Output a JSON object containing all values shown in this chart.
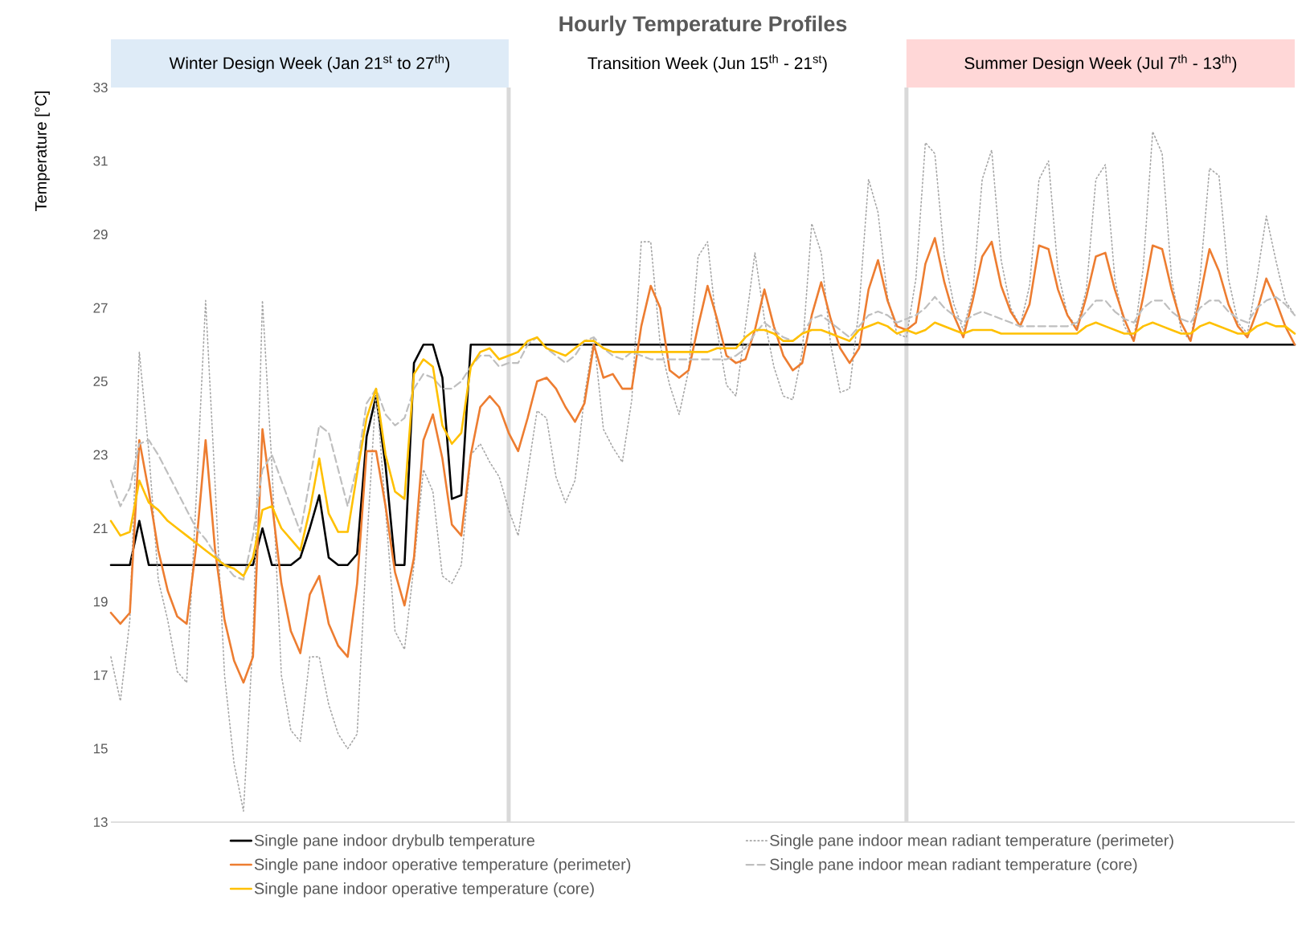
{
  "chart_data": {
    "type": "line",
    "title": "Hourly Temperature Profiles",
    "ylabel": "Temperature [°C]",
    "categories": [
      null,
      null,
      null,
      null,
      null,
      null,
      null,
      null,
      null,
      null,
      null,
      null,
      null,
      null,
      null,
      null,
      null,
      null,
      null,
      null,
      null,
      null,
      null,
      null,
      null,
      null,
      null,
      null,
      null,
      null,
      null,
      null,
      null,
      null,
      null,
      null,
      null,
      null,
      null,
      null,
      null,
      null,
      null,
      null,
      null,
      null,
      null,
      null,
      null,
      null,
      null,
      null,
      null,
      null,
      null,
      null,
      null,
      null,
      null,
      null,
      null,
      null,
      null,
      null,
      null,
      null,
      null,
      null,
      null,
      null,
      null,
      null,
      null,
      null,
      null,
      null,
      null,
      null,
      null,
      null,
      null,
      null,
      null,
      null,
      null,
      null,
      null,
      null,
      null,
      null,
      null,
      null,
      null,
      null,
      null,
      null,
      null,
      null,
      null,
      null,
      null,
      null,
      null,
      null,
      null,
      null,
      null,
      null,
      null,
      null,
      null,
      null,
      null,
      null,
      null,
      null,
      null,
      null,
      null,
      null,
      null,
      null,
      null,
      null,
      null,
      null
    ],
    "ylim": [
      13,
      33
    ],
    "yticks": [
      13,
      15,
      17,
      19,
      21,
      23,
      25,
      27,
      29,
      31,
      33
    ],
    "tick_labels": "y",
    "legend": "bottom",
    "marker": "none",
    "annotations": [
      "Winter Design Week (Jan 21$^{st}$ to 27$^{th}$)",
      "Transition Week (Jun 15$^{th}$ - 21$^{st}$)",
      "Summer Design Week (Jul 7$^{th}$ - 13$^{th}$)"
    ],
    "series": [
      {
        "name": "Single pane indoor drybulb temperature",
        "color": "#000000",
        "line_style": "solid",
        "values": [
          20,
          20,
          20,
          21.2,
          20,
          20,
          20,
          20,
          20,
          20,
          20,
          20,
          20,
          20,
          20,
          20,
          21,
          20,
          20,
          20,
          20.2,
          21.0,
          21.9,
          20.2,
          20,
          20,
          20.3,
          23.5,
          24.6,
          22.7,
          20,
          20,
          25.5,
          26,
          26,
          25.1,
          21.8,
          21.9,
          26,
          26,
          26,
          26,
          26,
          26,
          26,
          26,
          26,
          26,
          26,
          26,
          26,
          26,
          26,
          26,
          26,
          26,
          26,
          26,
          26,
          26,
          26,
          26,
          26,
          26,
          26,
          26,
          26,
          26,
          26,
          26,
          26,
          26,
          26,
          26,
          26,
          26,
          26,
          26,
          26,
          26,
          26,
          26,
          26,
          26,
          26,
          26,
          26,
          26,
          26,
          26,
          26,
          26,
          26,
          26,
          26,
          26,
          26,
          26,
          26,
          26,
          26,
          26,
          26,
          26,
          26,
          26,
          26,
          26,
          26,
          26,
          26,
          26,
          26,
          26,
          26,
          26,
          26,
          26,
          26,
          26,
          26,
          26,
          26,
          26,
          26,
          26
        ]
      },
      {
        "name": "Single pane indoor mean radiant temperature (perimeter)",
        "color": "#a6a6a6",
        "line_style": "dotted",
        "values": [
          17.5,
          16.3,
          18.5,
          25.8,
          23.1,
          19.6,
          18.5,
          17.1,
          16.8,
          21.8,
          27.2,
          22.2,
          17.0,
          14.6,
          13.3,
          18.0,
          27.2,
          22.7,
          17.0,
          15.5,
          15.2,
          17.5,
          17.5,
          16.2,
          15.4,
          15.0,
          15.4,
          20.5,
          24.8,
          21.5,
          18.2,
          17.7,
          20.0,
          22.6,
          22.0,
          19.7,
          19.5,
          20.0,
          23.0,
          23.3,
          22.8,
          22.4,
          21.5,
          20.8,
          22.5,
          24.2,
          24.0,
          22.4,
          21.7,
          22.3,
          24.6,
          26.2,
          23.7,
          23.2,
          22.8,
          24.5,
          28.8,
          28.8,
          26.0,
          24.9,
          24.1,
          25.3,
          28.4,
          28.8,
          26.4,
          24.9,
          24.6,
          26.5,
          28.5,
          26.7,
          25.4,
          24.6,
          24.5,
          25.8,
          29.3,
          28.5,
          26.0,
          24.7,
          24.8,
          27.0,
          30.5,
          29.6,
          27.3,
          26.3,
          26.2,
          27.8,
          31.5,
          31.2,
          28.4,
          27.1,
          26.4,
          27.4,
          30.5,
          31.3,
          28.3,
          27.0,
          26.5,
          27.6,
          30.5,
          31.0,
          28.0,
          26.8,
          26.5,
          27.5,
          30.5,
          30.9,
          27.8,
          26.5,
          26.1,
          28.1,
          31.8,
          31.2,
          27.8,
          26.4,
          26.1,
          27.8,
          30.8,
          30.6,
          27.8,
          26.6,
          26.3,
          27.8,
          29.5,
          28.3,
          27.2,
          26.8
        ]
      },
      {
        "name": "Single pane indoor operative temperature (perimeter)",
        "color": "#ed7d31",
        "line_style": "solid",
        "values": [
          18.7,
          18.4,
          18.7,
          23.4,
          22.0,
          20.4,
          19.3,
          18.6,
          18.4,
          20.5,
          23.4,
          20.4,
          18.5,
          17.4,
          16.8,
          17.5,
          23.7,
          21.7,
          19.5,
          18.2,
          17.6,
          19.2,
          19.7,
          18.4,
          17.8,
          17.5,
          19.5,
          23.1,
          23.1,
          21.6,
          19.8,
          18.9,
          20.2,
          23.4,
          24.1,
          22.9,
          21.1,
          20.8,
          23.0,
          24.3,
          24.6,
          24.3,
          23.6,
          23.1,
          24.0,
          25.0,
          25.1,
          24.8,
          24.3,
          23.9,
          24.4,
          26.0,
          25.1,
          25.2,
          24.8,
          24.8,
          26.5,
          27.6,
          27.0,
          25.3,
          25.1,
          25.3,
          26.5,
          27.6,
          26.7,
          25.7,
          25.5,
          25.6,
          26.4,
          27.5,
          26.5,
          25.7,
          25.3,
          25.5,
          26.8,
          27.7,
          26.7,
          25.9,
          25.5,
          25.9,
          27.5,
          28.3,
          27.2,
          26.5,
          26.4,
          26.6,
          28.2,
          28.9,
          27.7,
          26.8,
          26.2,
          27.2,
          28.4,
          28.8,
          27.6,
          26.9,
          26.5,
          27.1,
          28.7,
          28.6,
          27.5,
          26.8,
          26.4,
          27.3,
          28.4,
          28.5,
          27.5,
          26.7,
          26.1,
          27.3,
          28.7,
          28.6,
          27.5,
          26.6,
          26.1,
          27.3,
          28.6,
          28.0,
          27.1,
          26.5,
          26.2,
          26.9,
          27.8,
          27.2,
          26.5,
          26.0
        ]
      },
      {
        "name": "Single pane indoor mean radiant temperature (core)",
        "color": "#bfbfbf",
        "line_style": "dashed",
        "values": [
          22.3,
          21.6,
          22.1,
          23.3,
          23.4,
          23.0,
          22.5,
          22.0,
          21.5,
          21.0,
          20.7,
          20.3,
          20.0,
          19.7,
          19.6,
          20.8,
          22.6,
          23.0,
          22.3,
          21.6,
          20.9,
          22.3,
          23.8,
          23.6,
          22.6,
          21.6,
          22.7,
          24.4,
          24.8,
          24.1,
          23.8,
          24.0,
          24.8,
          25.2,
          25.1,
          24.8,
          24.8,
          25.0,
          25.4,
          25.7,
          25.7,
          25.4,
          25.5,
          25.5,
          26.0,
          26.2,
          25.9,
          25.7,
          25.5,
          25.7,
          26.1,
          26.2,
          25.9,
          25.7,
          25.6,
          25.8,
          25.7,
          25.6,
          25.6,
          25.6,
          25.6,
          25.6,
          25.6,
          25.6,
          25.6,
          25.6,
          25.7,
          25.9,
          26.3,
          26.6,
          26.4,
          26.2,
          26.1,
          26.3,
          26.7,
          26.8,
          26.6,
          26.4,
          26.2,
          26.5,
          26.8,
          26.9,
          26.8,
          26.6,
          26.7,
          26.8,
          27.0,
          27.3,
          27.0,
          26.8,
          26.6,
          26.8,
          26.9,
          26.8,
          26.7,
          26.6,
          26.5,
          26.5,
          26.5,
          26.5,
          26.5,
          26.5,
          26.6,
          26.9,
          27.2,
          27.2,
          26.9,
          26.7,
          26.6,
          27.0,
          27.2,
          27.2,
          26.9,
          26.7,
          26.6,
          27.0,
          27.2,
          27.2,
          26.9,
          26.7,
          26.6,
          27.0,
          27.2,
          27.3,
          27.1,
          26.8
        ]
      },
      {
        "name": "Single pane indoor operative temperature (core)",
        "color": "#ffc000",
        "line_style": "solid",
        "values": [
          21.2,
          20.8,
          20.9,
          22.3,
          21.7,
          21.5,
          21.2,
          21.0,
          20.8,
          20.6,
          20.4,
          20.2,
          20.0,
          19.9,
          19.7,
          20.2,
          21.5,
          21.6,
          21.0,
          20.7,
          20.4,
          21.5,
          22.9,
          21.4,
          20.9,
          20.9,
          22.5,
          24.0,
          24.8,
          23.0,
          22.0,
          21.8,
          25.2,
          25.6,
          25.4,
          23.8,
          23.3,
          23.6,
          25.4,
          25.8,
          25.9,
          25.6,
          25.7,
          25.8,
          26.1,
          26.2,
          25.9,
          25.8,
          25.7,
          25.9,
          26.1,
          26.1,
          25.9,
          25.8,
          25.8,
          25.8,
          25.8,
          25.8,
          25.8,
          25.8,
          25.8,
          25.8,
          25.8,
          25.8,
          25.9,
          25.9,
          25.9,
          26.2,
          26.4,
          26.4,
          26.3,
          26.1,
          26.1,
          26.3,
          26.4,
          26.4,
          26.3,
          26.2,
          26.1,
          26.4,
          26.5,
          26.6,
          26.5,
          26.3,
          26.4,
          26.3,
          26.4,
          26.6,
          26.5,
          26.4,
          26.3,
          26.4,
          26.4,
          26.4,
          26.3,
          26.3,
          26.3,
          26.3,
          26.3,
          26.3,
          26.3,
          26.3,
          26.3,
          26.5,
          26.6,
          26.5,
          26.4,
          26.3,
          26.3,
          26.5,
          26.6,
          26.5,
          26.4,
          26.3,
          26.3,
          26.5,
          26.6,
          26.5,
          26.4,
          26.3,
          26.3,
          26.5,
          26.6,
          26.5,
          26.5,
          26.3
        ]
      }
    ]
  }
}
